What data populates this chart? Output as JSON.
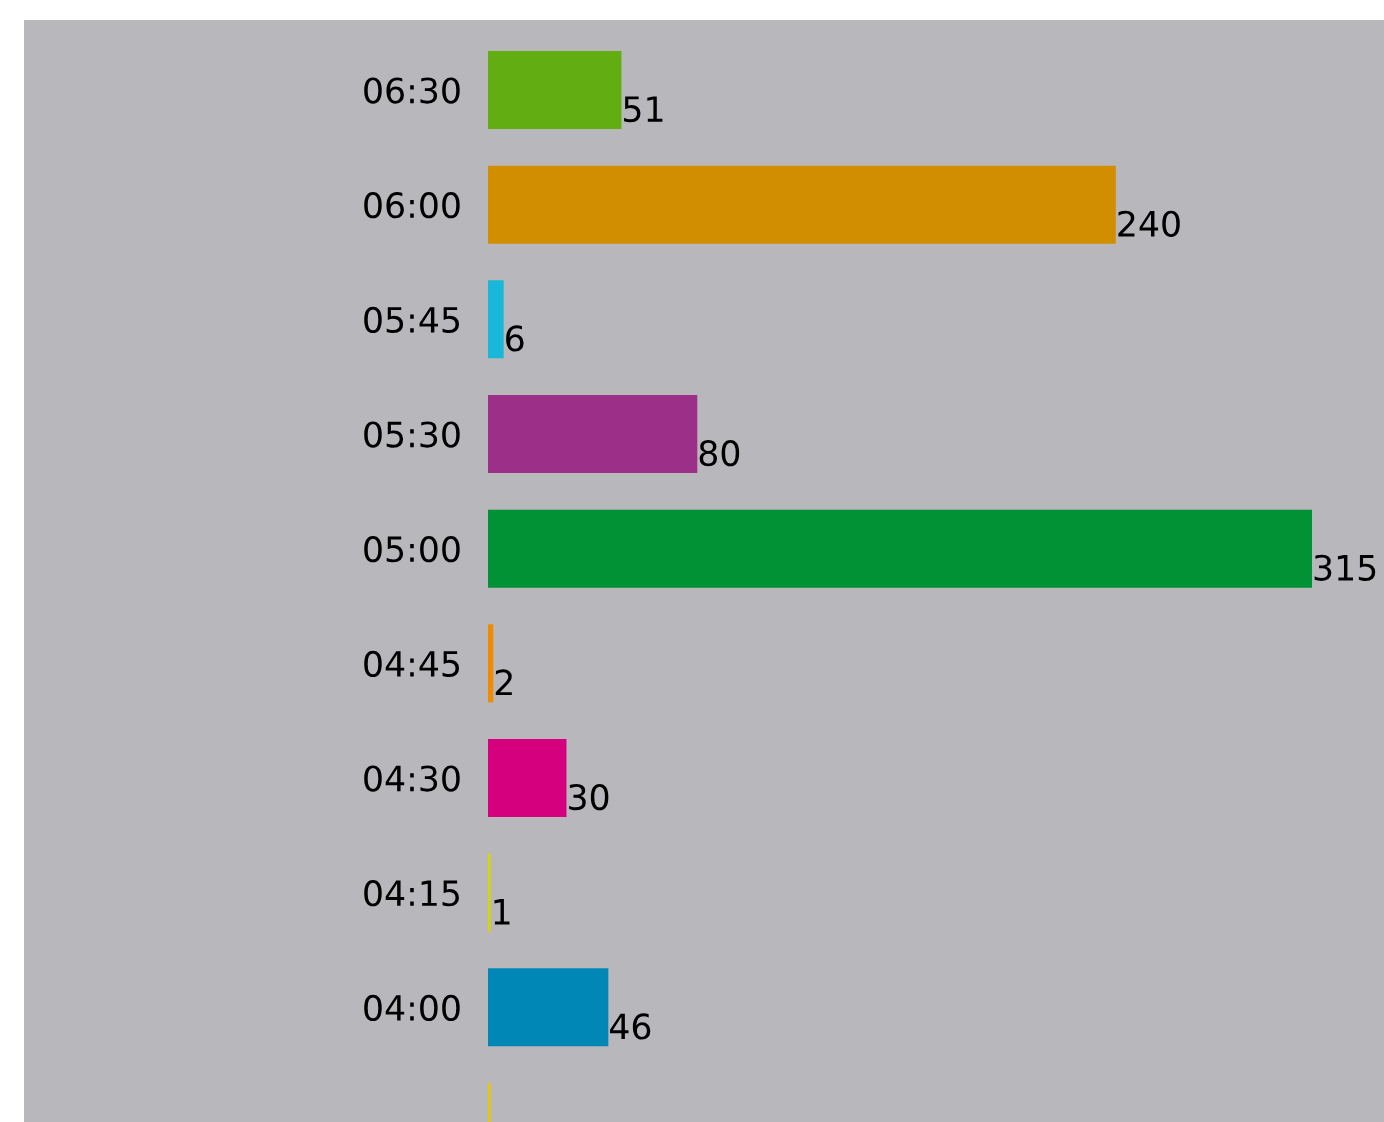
{
  "chart_data": {
    "type": "bar",
    "orientation": "horizontal",
    "categories": [
      "06:30",
      "06:00",
      "05:45",
      "05:30",
      "05:00",
      "04:45",
      "04:30",
      "04:15",
      "04:00",
      null
    ],
    "values": [
      51,
      240,
      6,
      80,
      315,
      2,
      30,
      1,
      46,
      1
    ],
    "value_labels": [
      "51",
      "240",
      "6",
      "80",
      "315",
      "2",
      "30",
      "1",
      "46",
      null
    ],
    "colors": [
      "#62ad12",
      "#d18f00",
      "#1ab8d8",
      "#9c2f88",
      "#009234",
      "#f08a00",
      "#d4007e",
      "#d6d600",
      "#0087b5",
      "#e8c800"
    ],
    "grid": false,
    "legend": false
  }
}
